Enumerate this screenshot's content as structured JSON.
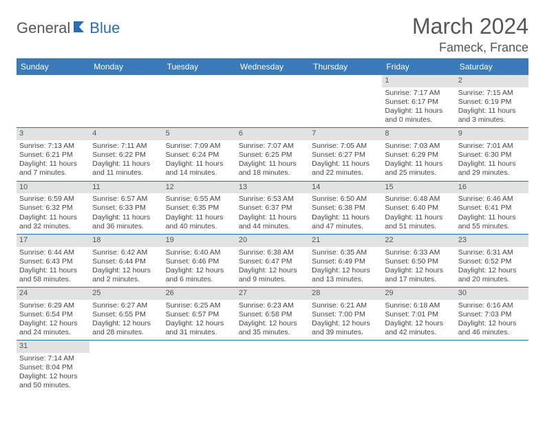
{
  "logo": {
    "general": "General",
    "blue": "Blue"
  },
  "title": "March 2024",
  "location": "Fameck, France",
  "days_of_week": [
    "Sunday",
    "Monday",
    "Tuesday",
    "Wednesday",
    "Thursday",
    "Friday",
    "Saturday"
  ],
  "colors": {
    "header_bg": "#3a7ab8",
    "row_border": "#2a6db4",
    "daynum_bg": "#e2e2e2",
    "text": "#545658",
    "logo_blue": "#2a6db4"
  },
  "days": [
    {
      "n": 1,
      "sunrise": "7:17 AM",
      "sunset": "6:17 PM",
      "daylight": "11 hours and 0 minutes."
    },
    {
      "n": 2,
      "sunrise": "7:15 AM",
      "sunset": "6:19 PM",
      "daylight": "11 hours and 3 minutes."
    },
    {
      "n": 3,
      "sunrise": "7:13 AM",
      "sunset": "6:21 PM",
      "daylight": "11 hours and 7 minutes."
    },
    {
      "n": 4,
      "sunrise": "7:11 AM",
      "sunset": "6:22 PM",
      "daylight": "11 hours and 11 minutes."
    },
    {
      "n": 5,
      "sunrise": "7:09 AM",
      "sunset": "6:24 PM",
      "daylight": "11 hours and 14 minutes."
    },
    {
      "n": 6,
      "sunrise": "7:07 AM",
      "sunset": "6:25 PM",
      "daylight": "11 hours and 18 minutes."
    },
    {
      "n": 7,
      "sunrise": "7:05 AM",
      "sunset": "6:27 PM",
      "daylight": "11 hours and 22 minutes."
    },
    {
      "n": 8,
      "sunrise": "7:03 AM",
      "sunset": "6:29 PM",
      "daylight": "11 hours and 25 minutes."
    },
    {
      "n": 9,
      "sunrise": "7:01 AM",
      "sunset": "6:30 PM",
      "daylight": "11 hours and 29 minutes."
    },
    {
      "n": 10,
      "sunrise": "6:59 AM",
      "sunset": "6:32 PM",
      "daylight": "11 hours and 32 minutes."
    },
    {
      "n": 11,
      "sunrise": "6:57 AM",
      "sunset": "6:33 PM",
      "daylight": "11 hours and 36 minutes."
    },
    {
      "n": 12,
      "sunrise": "6:55 AM",
      "sunset": "6:35 PM",
      "daylight": "11 hours and 40 minutes."
    },
    {
      "n": 13,
      "sunrise": "6:53 AM",
      "sunset": "6:37 PM",
      "daylight": "11 hours and 44 minutes."
    },
    {
      "n": 14,
      "sunrise": "6:50 AM",
      "sunset": "6:38 PM",
      "daylight": "11 hours and 47 minutes."
    },
    {
      "n": 15,
      "sunrise": "6:48 AM",
      "sunset": "6:40 PM",
      "daylight": "11 hours and 51 minutes."
    },
    {
      "n": 16,
      "sunrise": "6:46 AM",
      "sunset": "6:41 PM",
      "daylight": "11 hours and 55 minutes."
    },
    {
      "n": 17,
      "sunrise": "6:44 AM",
      "sunset": "6:43 PM",
      "daylight": "11 hours and 58 minutes."
    },
    {
      "n": 18,
      "sunrise": "6:42 AM",
      "sunset": "6:44 PM",
      "daylight": "12 hours and 2 minutes."
    },
    {
      "n": 19,
      "sunrise": "6:40 AM",
      "sunset": "6:46 PM",
      "daylight": "12 hours and 6 minutes."
    },
    {
      "n": 20,
      "sunrise": "6:38 AM",
      "sunset": "6:47 PM",
      "daylight": "12 hours and 9 minutes."
    },
    {
      "n": 21,
      "sunrise": "6:35 AM",
      "sunset": "6:49 PM",
      "daylight": "12 hours and 13 minutes."
    },
    {
      "n": 22,
      "sunrise": "6:33 AM",
      "sunset": "6:50 PM",
      "daylight": "12 hours and 17 minutes."
    },
    {
      "n": 23,
      "sunrise": "6:31 AM",
      "sunset": "6:52 PM",
      "daylight": "12 hours and 20 minutes."
    },
    {
      "n": 24,
      "sunrise": "6:29 AM",
      "sunset": "6:54 PM",
      "daylight": "12 hours and 24 minutes."
    },
    {
      "n": 25,
      "sunrise": "6:27 AM",
      "sunset": "6:55 PM",
      "daylight": "12 hours and 28 minutes."
    },
    {
      "n": 26,
      "sunrise": "6:25 AM",
      "sunset": "6:57 PM",
      "daylight": "12 hours and 31 minutes."
    },
    {
      "n": 27,
      "sunrise": "6:23 AM",
      "sunset": "6:58 PM",
      "daylight": "12 hours and 35 minutes."
    },
    {
      "n": 28,
      "sunrise": "6:21 AM",
      "sunset": "7:00 PM",
      "daylight": "12 hours and 39 minutes."
    },
    {
      "n": 29,
      "sunrise": "6:18 AM",
      "sunset": "7:01 PM",
      "daylight": "12 hours and 42 minutes."
    },
    {
      "n": 30,
      "sunrise": "6:16 AM",
      "sunset": "7:03 PM",
      "daylight": "12 hours and 46 minutes."
    },
    {
      "n": 31,
      "sunrise": "7:14 AM",
      "sunset": "8:04 PM",
      "daylight": "12 hours and 50 minutes."
    }
  ],
  "leading_blanks": 5
}
